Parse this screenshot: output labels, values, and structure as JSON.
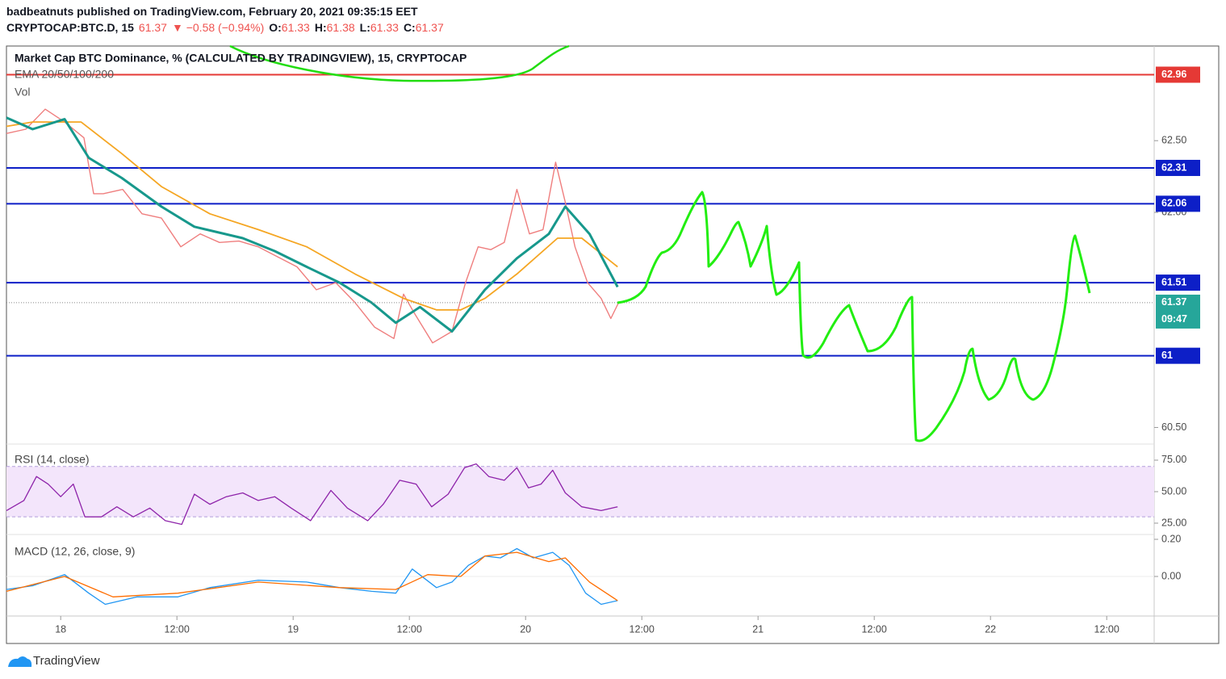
{
  "header": {
    "byline": "badbeatnuts published on TradingView.com, February 20, 2021 09:35:15 EET",
    "symbol": "CRYPTOCAP:BTC.D, 15",
    "last": "61.37",
    "change": "▼ −0.58 (−0.94%)",
    "ohlc": [
      {
        "label": "O:",
        "value": "61.33"
      },
      {
        "label": "H:",
        "value": "61.38"
      },
      {
        "label": "L:",
        "value": "61.33"
      },
      {
        "label": "C:",
        "value": "61.37"
      }
    ]
  },
  "footer": {
    "brand": "TradingView"
  },
  "chart_data": [
    {
      "type": "line",
      "title": "Market Cap BTC Dominance, % (CALCULATED BY TRADINGVIEW), 15, CRYPTOCAP",
      "legend": [
        "EMA 20/50/100/200",
        "Vol"
      ],
      "xlim": [
        -5.6,
        112.9
      ],
      "ylim": [
        60.39,
        63.16
      ],
      "xticks": [
        {
          "value": 0,
          "label": "18"
        },
        {
          "value": 12,
          "label": "12:00"
        },
        {
          "value": 24,
          "label": "19"
        },
        {
          "value": 36,
          "label": "12:00"
        },
        {
          "value": 48,
          "label": "20"
        },
        {
          "value": 60,
          "label": "12:00"
        },
        {
          "value": 72,
          "label": "21"
        },
        {
          "value": 84,
          "label": "12:00"
        },
        {
          "value": 96,
          "label": "22"
        },
        {
          "value": 108,
          "label": "12:00"
        }
      ],
      "yticks": [
        {
          "value": 62.5,
          "label": "62.50"
        },
        {
          "value": 62,
          "label": "62.00"
        },
        {
          "value": 60.5,
          "label": "60.50"
        }
      ],
      "levels": [
        {
          "value": 62.96,
          "color": "#e53935"
        },
        {
          "value": 62.31,
          "color": "#0d1fc7"
        },
        {
          "value": 62.06,
          "color": "#0d1fc7"
        },
        {
          "value": 61.51,
          "color": "#0d1fc7"
        },
        {
          "value": 61.0,
          "color": "#0d1fc7"
        }
      ],
      "last": {
        "value": 61.37,
        "countdown": "09:47",
        "color": "#26a69a"
      },
      "series": [
        {
          "color": "#ef7e7e",
          "width": 1.4,
          "x": [
            -5.6,
            -3.6,
            -1.6,
            0.4,
            2.4,
            3.4,
            4.4,
            6.4,
            8.4,
            10.4,
            12.4,
            14.4,
            16.4,
            18.4,
            20.4,
            22.4,
            24.4,
            26.4,
            28.4,
            30.4,
            32.4,
            34.4,
            35.4,
            36.4,
            38.4,
            40.4,
            41.8,
            43.1,
            44.4,
            45.8,
            47.1,
            48.4,
            49.8,
            51.1,
            52.1,
            53.1,
            54.4,
            55.8,
            56.8,
            57.6
          ],
          "values": [
            62.55,
            62.58,
            62.72,
            62.63,
            62.52,
            62.13,
            62.13,
            62.16,
            61.99,
            61.96,
            61.76,
            61.85,
            61.79,
            61.8,
            61.76,
            61.69,
            61.62,
            61.46,
            61.51,
            61.37,
            61.2,
            61.12,
            61.43,
            61.31,
            61.09,
            61.17,
            61.51,
            61.76,
            61.74,
            61.79,
            62.16,
            61.85,
            61.88,
            62.35,
            62.07,
            61.76,
            61.51,
            61.4,
            61.26,
            61.37
          ]
        },
        {
          "color": "#f5a623",
          "width": 1.8,
          "x": [
            -5.6,
            -2.9,
            2.1,
            6.3,
            10.4,
            15.4,
            20.4,
            25.4,
            30.4,
            35.4,
            38.8,
            41.3,
            43.8,
            47.1,
            51.3,
            53.8,
            57.5
          ],
          "values": [
            62.6,
            62.63,
            62.63,
            62.41,
            62.18,
            61.99,
            61.88,
            61.76,
            61.57,
            61.4,
            61.32,
            61.32,
            61.4,
            61.57,
            61.82,
            61.82,
            61.62
          ]
        },
        {
          "color": "#17988c",
          "width": 3,
          "x": [
            -5.6,
            -2.9,
            0.4,
            2.9,
            6.3,
            10.4,
            13.8,
            18.8,
            22.1,
            25.4,
            28.8,
            32.1,
            34.6,
            37.1,
            40.4,
            43.8,
            47.1,
            50.4,
            52.1,
            54.6,
            57.5
          ],
          "values": [
            62.66,
            62.58,
            62.65,
            62.38,
            62.24,
            62.04,
            61.9,
            61.82,
            61.73,
            61.62,
            61.51,
            61.37,
            61.23,
            61.34,
            61.17,
            61.46,
            61.68,
            61.85,
            62.04,
            61.85,
            61.48
          ]
        }
      ]
    },
    {
      "type": "line",
      "title": "RSI (14, close)",
      "ylim": [
        17.3,
        83.3
      ],
      "band": [
        30,
        70
      ],
      "yticks": [
        {
          "value": 75,
          "label": "75.00"
        },
        {
          "value": 50,
          "label": "50.00"
        },
        {
          "value": 25,
          "label": "25.00"
        }
      ],
      "series": [
        {
          "color": "#8e24aa",
          "width": 1.3,
          "x": [
            -5.6,
            -3.8,
            -2.5,
            -1.3,
            0,
            1.3,
            2.5,
            4.2,
            5.8,
            7.5,
            9.2,
            10.8,
            12.5,
            13.8,
            15.4,
            17.1,
            18.8,
            20.4,
            22.1,
            23.8,
            25.8,
            27.9,
            29.6,
            31.7,
            33.3,
            35,
            36.7,
            38.3,
            40,
            41.7,
            42.9,
            44.2,
            45.8,
            47.1,
            48.3,
            49.6,
            50.8,
            52.1,
            53.8,
            55.8,
            57.5
          ],
          "values": [
            35,
            43,
            62,
            56,
            46,
            56,
            30,
            30,
            38,
            30,
            37,
            27,
            24,
            48,
            40,
            46,
            49,
            43,
            46,
            37,
            27,
            51,
            37,
            27,
            40,
            59,
            56,
            38,
            48,
            69,
            72,
            62,
            59,
            69,
            53,
            56,
            67,
            49,
            38,
            35,
            38
          ]
        }
      ]
    },
    {
      "type": "line",
      "title": "MACD (12, 26, close, 9)",
      "ylim": [
        -0.2,
        0.213
      ],
      "yticks": [
        {
          "value": 0.2,
          "label": "0.20"
        },
        {
          "value": 0,
          "label": "0.00"
        }
      ],
      "series": [
        {
          "color": "#2196f3",
          "width": 1.3,
          "x": [
            -5.6,
            -2.9,
            0.4,
            2.9,
            4.6,
            7.9,
            12.1,
            15.4,
            20.4,
            25.4,
            28.8,
            32.1,
            34.6,
            36.3,
            38.8,
            40.4,
            42.1,
            43.8,
            45.4,
            47.1,
            48.8,
            50.8,
            52.5,
            54.2,
            55.8,
            57.5
          ],
          "values": [
            -0.07,
            -0.05,
            0.01,
            -0.09,
            -0.15,
            -0.11,
            -0.11,
            -0.06,
            -0.02,
            -0.03,
            -0.06,
            -0.08,
            -0.09,
            0.04,
            -0.06,
            -0.03,
            0.06,
            0.11,
            0.1,
            0.15,
            0.1,
            0.13,
            0.06,
            -0.09,
            -0.15,
            -0.13
          ]
        },
        {
          "color": "#ff6d00",
          "width": 1.3,
          "x": [
            -5.6,
            0.4,
            5.4,
            12.1,
            20.4,
            28.8,
            34.6,
            37.9,
            41.3,
            43.8,
            47.1,
            50.4,
            52.1,
            54.6,
            57.5
          ],
          "values": [
            -0.08,
            0,
            -0.11,
            -0.09,
            -0.03,
            -0.06,
            -0.07,
            0.01,
            0,
            0.11,
            0.13,
            0.08,
            0.1,
            -0.03,
            -0.13
          ]
        }
      ]
    }
  ]
}
